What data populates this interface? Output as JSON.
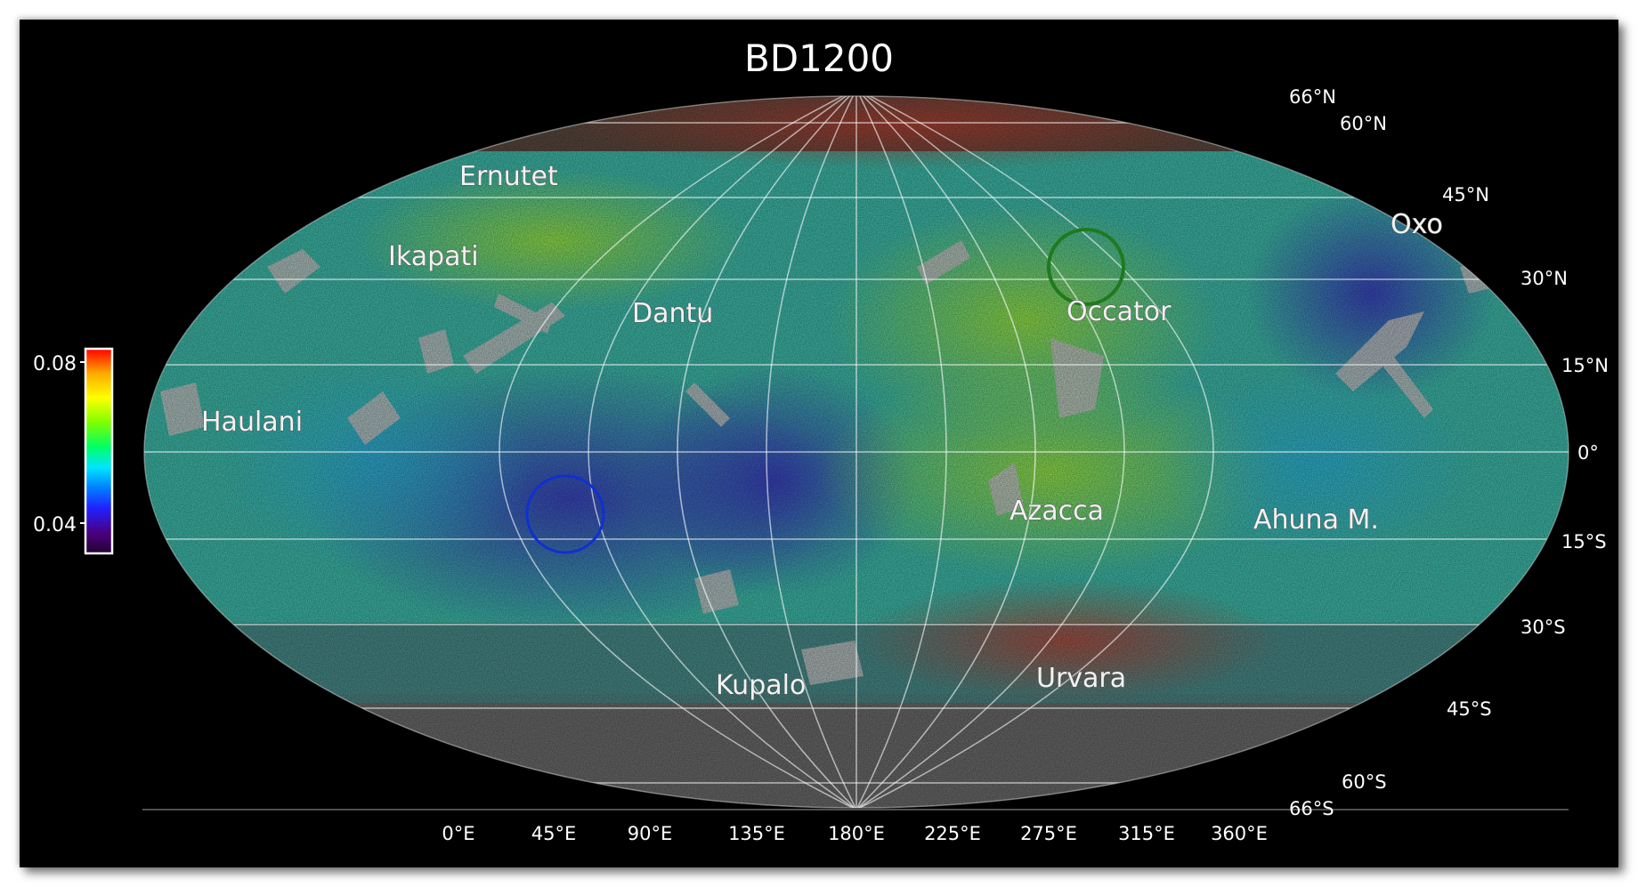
{
  "title": "BD1200",
  "colorbar": {
    "ticks": [
      "0.08",
      "0.04"
    ],
    "colors": [
      "#ff0000",
      "#ffaa00",
      "#ffff00",
      "#7fff00",
      "#00ff66",
      "#00e5ff",
      "#0080ff",
      "#2020ff",
      "#4a0080",
      "#220030"
    ]
  },
  "latitude_labels": {
    "n66": "66°N",
    "n60": "60°N",
    "n45": "45°N",
    "n30": "30°N",
    "n15": "15°N",
    "eq": "0°",
    "s15": "15°S",
    "s30": "30°S",
    "s45": "45°S",
    "s60": "60°S",
    "s66": "66°S"
  },
  "longitude_labels": [
    "0°E",
    "45°E",
    "90°E",
    "135°E",
    "180°E",
    "225°E",
    "275°E",
    "315°E",
    "360°E"
  ],
  "features": {
    "ernutet": "Ernutet",
    "ikapati": "Ikapati",
    "dantu": "Dantu",
    "occator": "Occator",
    "oxo": "Oxo",
    "haulani": "Haulani",
    "azacca": "Azacca",
    "ahuna": "Ahuna M.",
    "kupalo": "Kupalo",
    "urvara": "Urvara"
  },
  "circles": {
    "green": "#1f7a1f",
    "blue": "#1030d0"
  }
}
